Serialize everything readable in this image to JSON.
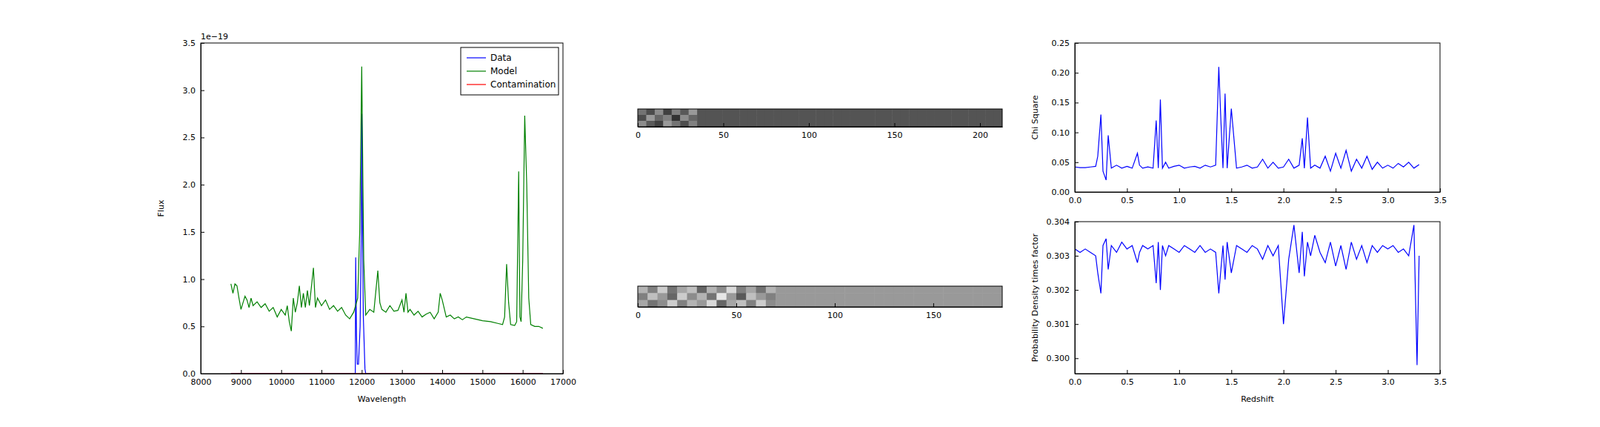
{
  "chart_data": [
    {
      "type": "line",
      "xlabel": "Wavelength",
      "ylabel": "Flux",
      "annotations": [
        "1e−19"
      ],
      "xlim": [
        8000,
        17000
      ],
      "xticks": [
        8000,
        9000,
        10000,
        11000,
        12000,
        13000,
        14000,
        15000,
        16000,
        17000
      ],
      "ylim": [
        0,
        3.5
      ],
      "yticks": [
        {
          "value": 0,
          "label": "0.0"
        },
        0.5,
        {
          "value": 1,
          "label": "1.0"
        },
        1.5,
        {
          "value": 2,
          "label": "2.0"
        },
        2.5,
        {
          "value": 3,
          "label": "3.0"
        },
        3.5
      ],
      "legend": "upper right",
      "series": [
        {
          "name": "Data",
          "color": "#0000ff",
          "x": [
            8750,
            11840,
            11850,
            11870,
            11890,
            11920,
            11960,
            11990,
            12000,
            12010,
            12040,
            12080,
            12100,
            16500
          ],
          "values": [
            0,
            0,
            1.23,
            0.4,
            0.1,
            0.1,
            0.5,
            1.5,
            2.75,
            2.0,
            0.6,
            0.05,
            0,
            0
          ]
        },
        {
          "name": "Model",
          "color": "#008000",
          "x": [
            8750,
            8800,
            8850,
            8900,
            8950,
            9000,
            9050,
            9100,
            9150,
            9200,
            9250,
            9300,
            9400,
            9500,
            9600,
            9700,
            9800,
            9900,
            10000,
            10100,
            10150,
            10200,
            10250,
            10300,
            10350,
            10400,
            10450,
            10500,
            10550,
            10600,
            10650,
            10700,
            10800,
            10850,
            10900,
            11000,
            11100,
            11200,
            11300,
            11400,
            11500,
            11600,
            11700,
            11800,
            11900,
            11950,
            12000,
            12050,
            12100,
            12200,
            12300,
            12400,
            12450,
            12500,
            12600,
            12700,
            12800,
            12900,
            13000,
            13050,
            13100,
            13150,
            13200,
            13300,
            13400,
            13500,
            13600,
            13700,
            13800,
            13900,
            13950,
            14000,
            14100,
            14200,
            14300,
            14400,
            14500,
            14600,
            14800,
            15000,
            15200,
            15400,
            15500,
            15550,
            15600,
            15650,
            15700,
            15800,
            15850,
            15900,
            15930,
            15960,
            16000,
            16050,
            16100,
            16150,
            16200,
            16300,
            16400,
            16500
          ],
          "values": [
            0.95,
            0.85,
            0.95,
            0.93,
            0.8,
            0.68,
            0.75,
            0.82,
            0.78,
            0.7,
            0.8,
            0.72,
            0.76,
            0.7,
            0.74,
            0.66,
            0.7,
            0.6,
            0.68,
            0.62,
            0.72,
            0.55,
            0.45,
            0.8,
            0.65,
            0.75,
            0.93,
            0.7,
            0.85,
            0.7,
            0.88,
            0.72,
            1.12,
            0.7,
            0.8,
            0.72,
            0.78,
            0.68,
            0.72,
            0.66,
            0.7,
            0.62,
            0.58,
            0.65,
            0.8,
            1.5,
            3.25,
            1.2,
            0.62,
            0.68,
            0.65,
            1.09,
            0.75,
            0.68,
            0.65,
            0.72,
            0.66,
            0.67,
            0.78,
            0.65,
            0.85,
            0.65,
            0.68,
            0.62,
            0.66,
            0.6,
            0.63,
            0.65,
            0.58,
            0.65,
            0.85,
            0.78,
            0.6,
            0.62,
            0.58,
            0.6,
            0.57,
            0.6,
            0.58,
            0.56,
            0.55,
            0.53,
            0.52,
            0.6,
            1.16,
            0.75,
            0.52,
            0.51,
            0.55,
            2.14,
            0.6,
            0.55,
            1.2,
            2.73,
            2.0,
            0.8,
            0.52,
            0.5,
            0.5,
            0.48
          ]
        },
        {
          "name": "Contamination",
          "color": "#ff0000",
          "x": [
            8750,
            16500
          ],
          "values": [
            0,
            0
          ]
        }
      ]
    },
    {
      "type": "image",
      "tick_labels": "x",
      "xlim": [
        0,
        213
      ],
      "xticks": [
        0,
        50,
        100,
        150,
        200
      ],
      "cells": [
        [
          0.45,
          0.3,
          0.55,
          0.25,
          0.5,
          0.35,
          0.6,
          0.33,
          0.33,
          0.33,
          0.33,
          0.33,
          0.33,
          0.33,
          0.33,
          0.33,
          0.33,
          0.33,
          0.33,
          0.33,
          0.33,
          0.33,
          0.33,
          0.33,
          0.33,
          0.33,
          0.33,
          0.33,
          0.33,
          0.33,
          0.33,
          0.33,
          0.33,
          0.33,
          0.33,
          0.33,
          0.33,
          0.33,
          0.33,
          0.33,
          0.33,
          0.33,
          0.33
        ],
        [
          0.3,
          0.6,
          0.4,
          0.5,
          0.2,
          0.55,
          0.4,
          0.33,
          0.33,
          0.33,
          0.33,
          0.33,
          0.33,
          0.33,
          0.33,
          0.33,
          0.33,
          0.33,
          0.33,
          0.33,
          0.33,
          0.33,
          0.33,
          0.33,
          0.33,
          0.33,
          0.33,
          0.33,
          0.33,
          0.33,
          0.33,
          0.33,
          0.33,
          0.33,
          0.33,
          0.33,
          0.33,
          0.33,
          0.33,
          0.33,
          0.33,
          0.33,
          0.33
        ],
        [
          0.55,
          0.35,
          0.25,
          0.6,
          0.45,
          0.3,
          0.5,
          0.33,
          0.33,
          0.33,
          0.33,
          0.33,
          0.33,
          0.33,
          0.33,
          0.33,
          0.33,
          0.33,
          0.33,
          0.33,
          0.33,
          0.33,
          0.33,
          0.33,
          0.33,
          0.33,
          0.33,
          0.33,
          0.33,
          0.33,
          0.33,
          0.33,
          0.33,
          0.33,
          0.33,
          0.33,
          0.33,
          0.33,
          0.33,
          0.33,
          0.33,
          0.33,
          0.33
        ]
      ]
    },
    {
      "type": "image",
      "tick_labels": "x",
      "xlim": [
        0,
        185
      ],
      "xticks": [
        0,
        50,
        100,
        150
      ],
      "cells": [
        [
          0.7,
          0.5,
          0.8,
          0.45,
          0.65,
          0.75,
          0.4,
          0.7,
          0.55,
          0.85,
          0.5,
          0.65,
          0.45,
          0.7,
          0.6,
          0.6,
          0.6,
          0.6,
          0.6,
          0.6,
          0.6,
          0.6,
          0.6,
          0.6,
          0.6,
          0.6,
          0.6,
          0.6,
          0.6,
          0.6,
          0.6,
          0.6,
          0.6,
          0.6,
          0.6,
          0.6,
          0.6
        ],
        [
          0.5,
          0.75,
          0.6,
          0.4,
          0.8,
          0.55,
          0.7,
          0.45,
          0.9,
          0.6,
          0.35,
          0.75,
          0.6,
          0.5,
          0.6,
          0.6,
          0.6,
          0.6,
          0.6,
          0.6,
          0.6,
          0.6,
          0.6,
          0.6,
          0.6,
          0.6,
          0.6,
          0.6,
          0.6,
          0.6,
          0.6,
          0.6,
          0.6,
          0.6,
          0.6,
          0.6,
          0.6
        ],
        [
          0.65,
          0.45,
          0.55,
          0.8,
          0.5,
          0.7,
          0.6,
          0.85,
          0.4,
          0.65,
          0.75,
          0.5,
          0.8,
          0.55,
          0.6,
          0.6,
          0.6,
          0.6,
          0.6,
          0.6,
          0.6,
          0.6,
          0.6,
          0.6,
          0.6,
          0.6,
          0.6,
          0.6,
          0.6,
          0.6,
          0.6,
          0.6,
          0.6,
          0.6,
          0.6,
          0.6,
          0.6
        ]
      ]
    },
    {
      "type": "line",
      "ylabel": "Chi Square",
      "xlim": [
        0,
        3.5
      ],
      "xticks": [
        {
          "value": 0,
          "label": "0.0"
        },
        0.5,
        {
          "value": 1,
          "label": "1.0"
        },
        1.5,
        {
          "value": 2,
          "label": "2.0"
        },
        2.5,
        {
          "value": 3,
          "label": "3.0"
        },
        3.5
      ],
      "ylim": [
        0,
        0.25
      ],
      "yticks": [
        {
          "value": 0,
          "label": "0.00"
        },
        0.05,
        {
          "value": 0.1,
          "label": "0.10"
        },
        0.15,
        {
          "value": 0.2,
          "label": "0.20"
        },
        0.25
      ],
      "series": [
        {
          "color": "#0000ff",
          "x": [
            0.0,
            0.05,
            0.1,
            0.15,
            0.2,
            0.22,
            0.25,
            0.27,
            0.3,
            0.32,
            0.35,
            0.4,
            0.45,
            0.5,
            0.55,
            0.6,
            0.62,
            0.65,
            0.7,
            0.75,
            0.78,
            0.8,
            0.82,
            0.84,
            0.87,
            0.9,
            0.95,
            1.0,
            1.05,
            1.1,
            1.15,
            1.2,
            1.25,
            1.3,
            1.35,
            1.38,
            1.4,
            1.42,
            1.44,
            1.46,
            1.5,
            1.55,
            1.6,
            1.65,
            1.7,
            1.75,
            1.8,
            1.85,
            1.9,
            1.95,
            2.0,
            2.05,
            2.1,
            2.15,
            2.18,
            2.2,
            2.23,
            2.26,
            2.3,
            2.35,
            2.4,
            2.45,
            2.5,
            2.55,
            2.6,
            2.65,
            2.7,
            2.75,
            2.8,
            2.85,
            2.9,
            2.95,
            3.0,
            3.05,
            3.1,
            3.15,
            3.2,
            3.25,
            3.3
          ],
          "values": [
            0.042,
            0.041,
            0.041,
            0.042,
            0.043,
            0.06,
            0.13,
            0.035,
            0.02,
            0.095,
            0.04,
            0.045,
            0.04,
            0.043,
            0.04,
            0.065,
            0.045,
            0.04,
            0.042,
            0.04,
            0.12,
            0.04,
            0.155,
            0.04,
            0.05,
            0.04,
            0.043,
            0.045,
            0.04,
            0.042,
            0.043,
            0.04,
            0.045,
            0.042,
            0.045,
            0.21,
            0.12,
            0.04,
            0.165,
            0.04,
            0.14,
            0.04,
            0.042,
            0.045,
            0.04,
            0.042,
            0.055,
            0.04,
            0.05,
            0.04,
            0.042,
            0.055,
            0.04,
            0.045,
            0.09,
            0.04,
            0.125,
            0.04,
            0.045,
            0.04,
            0.06,
            0.035,
            0.065,
            0.04,
            0.07,
            0.035,
            0.055,
            0.04,
            0.06,
            0.038,
            0.05,
            0.04,
            0.045,
            0.04,
            0.048,
            0.042,
            0.05,
            0.04,
            0.046
          ]
        }
      ]
    },
    {
      "type": "line",
      "xlabel": "Redshift",
      "ylabel": "Probability Density times factor",
      "xlim": [
        0,
        3.5
      ],
      "xticks": [
        {
          "value": 0,
          "label": "0.0"
        },
        0.5,
        {
          "value": 1,
          "label": "1.0"
        },
        1.5,
        {
          "value": 2,
          "label": "2.0"
        },
        2.5,
        {
          "value": 3,
          "label": "3.0"
        },
        3.5
      ],
      "ylim": [
        0.29955,
        0.304
      ],
      "yticks": [
        {
          "value": 0.3,
          "label": "0.300"
        },
        0.301,
        0.302,
        0.303,
        0.304
      ],
      "series": [
        {
          "color": "#0000ff",
          "x": [
            0.0,
            0.05,
            0.1,
            0.15,
            0.2,
            0.22,
            0.25,
            0.27,
            0.3,
            0.32,
            0.35,
            0.4,
            0.45,
            0.5,
            0.55,
            0.6,
            0.62,
            0.65,
            0.7,
            0.75,
            0.78,
            0.8,
            0.82,
            0.84,
            0.87,
            0.9,
            0.95,
            1.0,
            1.05,
            1.1,
            1.15,
            1.2,
            1.25,
            1.3,
            1.35,
            1.38,
            1.4,
            1.42,
            1.44,
            1.46,
            1.5,
            1.55,
            1.6,
            1.65,
            1.7,
            1.75,
            1.8,
            1.85,
            1.9,
            1.95,
            2.0,
            2.05,
            2.1,
            2.15,
            2.18,
            2.2,
            2.23,
            2.26,
            2.3,
            2.35,
            2.4,
            2.45,
            2.5,
            2.55,
            2.6,
            2.65,
            2.7,
            2.75,
            2.8,
            2.85,
            2.9,
            2.95,
            3.0,
            3.05,
            3.1,
            3.15,
            3.2,
            3.25,
            3.28,
            3.3
          ],
          "values": [
            0.3032,
            0.3031,
            0.3032,
            0.3031,
            0.303,
            0.3025,
            0.3019,
            0.3033,
            0.3035,
            0.3026,
            0.3033,
            0.3031,
            0.3034,
            0.3032,
            0.3033,
            0.3028,
            0.3031,
            0.3033,
            0.3032,
            0.3033,
            0.3022,
            0.3034,
            0.302,
            0.3033,
            0.303,
            0.3033,
            0.3032,
            0.3031,
            0.3033,
            0.3032,
            0.3031,
            0.3033,
            0.3031,
            0.3032,
            0.3031,
            0.3019,
            0.3026,
            0.3033,
            0.3023,
            0.3034,
            0.3025,
            0.3033,
            0.3032,
            0.3031,
            0.3033,
            0.3032,
            0.3029,
            0.3033,
            0.303,
            0.3033,
            0.301,
            0.3029,
            0.3039,
            0.3025,
            0.3037,
            0.3024,
            0.3034,
            0.303,
            0.3036,
            0.3031,
            0.3028,
            0.3034,
            0.3027,
            0.3033,
            0.3026,
            0.3034,
            0.3029,
            0.3033,
            0.3028,
            0.3033,
            0.3031,
            0.3033,
            0.3032,
            0.3033,
            0.3031,
            0.3032,
            0.303,
            0.3039,
            0.2998,
            0.303
          ]
        }
      ]
    }
  ]
}
